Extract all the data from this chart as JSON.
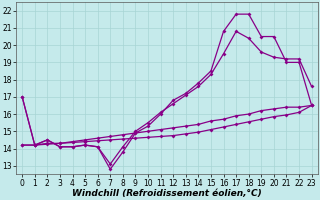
{
  "background_color": "#c5eaeb",
  "grid_color": "#a8d5d5",
  "line_color": "#880088",
  "marker": "D",
  "marker_size": 2.0,
  "linewidth": 0.9,
  "xlabel": "Windchill (Refroidissement éolien,°C)",
  "xlabel_fontsize": 6.5,
  "tick_fontsize": 5.5,
  "xlim": [
    -0.5,
    23.5
  ],
  "ylim": [
    12.5,
    22.5
  ],
  "yticks": [
    13,
    14,
    15,
    16,
    17,
    18,
    19,
    20,
    21,
    22
  ],
  "xticks": [
    0,
    1,
    2,
    3,
    4,
    5,
    6,
    7,
    8,
    9,
    10,
    11,
    12,
    13,
    14,
    15,
    16,
    17,
    18,
    19,
    20,
    21,
    22,
    23
  ],
  "s1_x": [
    0,
    1,
    2,
    3,
    4,
    5,
    6,
    7,
    8,
    9,
    10,
    11,
    12,
    13,
    14,
    15,
    16,
    17,
    18,
    19,
    20,
    21,
    22,
    23
  ],
  "s1_y": [
    17.0,
    14.2,
    14.5,
    14.1,
    14.1,
    14.2,
    14.1,
    12.8,
    13.8,
    14.9,
    15.3,
    16.0,
    16.8,
    17.2,
    17.8,
    18.5,
    20.8,
    21.8,
    21.8,
    20.5,
    20.5,
    19.0,
    19.0,
    16.5
  ],
  "s2_x": [
    0,
    1,
    2,
    3,
    4,
    5,
    6,
    7,
    8,
    9,
    10,
    11,
    12,
    13,
    14,
    15,
    16,
    17,
    18,
    19,
    20,
    21,
    22,
    23
  ],
  "s2_y": [
    17.0,
    14.2,
    14.5,
    14.1,
    14.1,
    14.2,
    14.1,
    13.1,
    14.1,
    15.0,
    15.5,
    16.1,
    16.6,
    17.1,
    17.6,
    18.3,
    19.5,
    20.8,
    20.4,
    19.6,
    19.3,
    19.2,
    19.2,
    17.6
  ],
  "s3_x": [
    0,
    1,
    2,
    3,
    4,
    5,
    6,
    7,
    8,
    9,
    10,
    11,
    12,
    13,
    14,
    15,
    16,
    17,
    18,
    19,
    20,
    21,
    22,
    23
  ],
  "s3_y": [
    14.2,
    14.2,
    14.3,
    14.3,
    14.4,
    14.5,
    14.6,
    14.7,
    14.8,
    14.9,
    15.0,
    15.1,
    15.2,
    15.3,
    15.4,
    15.6,
    15.7,
    15.9,
    16.0,
    16.2,
    16.3,
    16.4,
    16.4,
    16.5
  ],
  "s4_x": [
    0,
    1,
    2,
    3,
    4,
    5,
    6,
    7,
    8,
    9,
    10,
    11,
    12,
    13,
    14,
    15,
    16,
    17,
    18,
    19,
    20,
    21,
    22,
    23
  ],
  "s4_y": [
    14.2,
    14.2,
    14.25,
    14.3,
    14.35,
    14.4,
    14.45,
    14.5,
    14.55,
    14.6,
    14.65,
    14.7,
    14.75,
    14.85,
    14.95,
    15.1,
    15.25,
    15.4,
    15.55,
    15.7,
    15.85,
    15.95,
    16.1,
    16.5
  ]
}
